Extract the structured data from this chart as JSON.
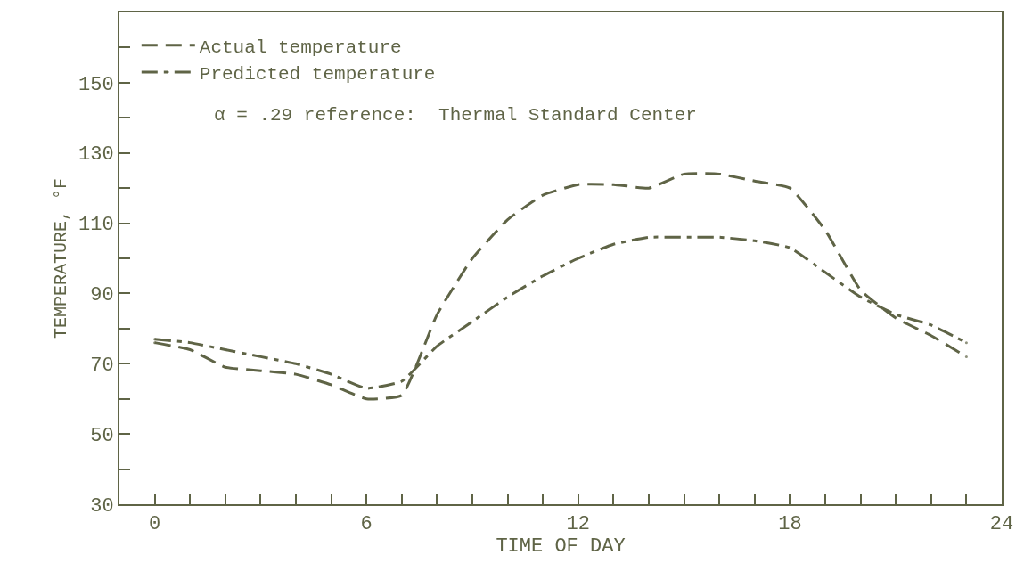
{
  "chart_data": {
    "type": "line",
    "xlabel": "TIME OF DAY",
    "ylabel": "TEMPERATURE, °F",
    "x": [
      0,
      1,
      2,
      3,
      4,
      5,
      6,
      7,
      8,
      9,
      10,
      11,
      12,
      13,
      14,
      15,
      16,
      17,
      18,
      19,
      20,
      21,
      22,
      23
    ],
    "series": [
      {
        "name": "Actual temperature",
        "color": "#5f6446",
        "line_style": "dashed",
        "values": [
          76,
          74,
          69,
          68,
          67,
          64,
          60,
          61,
          84,
          100,
          111,
          118,
          121,
          121,
          120,
          124,
          124,
          122,
          120,
          108,
          91,
          83,
          78,
          72
        ]
      },
      {
        "name": "Predicted temperature",
        "color": "#5f6446",
        "line_style": "dashdot",
        "values": [
          77,
          76,
          74,
          72,
          70,
          67,
          63,
          65,
          75,
          82,
          89,
          95,
          100,
          104,
          106,
          106,
          106,
          105,
          103,
          96,
          89,
          84,
          81,
          76
        ]
      }
    ],
    "annotations": [
      "α = .29 reference:  Thermal Standard Center"
    ],
    "xlim": [
      -1,
      24
    ],
    "xticks": [
      0,
      {
        "value": 1,
        "label": null
      },
      {
        "value": 2,
        "label": null
      },
      {
        "value": 3,
        "label": null
      },
      {
        "value": 4,
        "label": null
      },
      {
        "value": 5,
        "label": null
      },
      6,
      {
        "value": 7,
        "label": null
      },
      {
        "value": 8,
        "label": null
      },
      {
        "value": 9,
        "label": null
      },
      {
        "value": 10,
        "label": null
      },
      {
        "value": 11,
        "label": null
      },
      12,
      {
        "value": 13,
        "label": null
      },
      {
        "value": 14,
        "label": null
      },
      {
        "value": 15,
        "label": null
      },
      {
        "value": 16,
        "label": null
      },
      {
        "value": 17,
        "label": null
      },
      18,
      {
        "value": 19,
        "label": null
      },
      {
        "value": 20,
        "label": null
      },
      {
        "value": 21,
        "label": null
      },
      {
        "value": 22,
        "label": null
      },
      {
        "value": 23,
        "label": null
      },
      24
    ],
    "ylim": [
      30,
      170
    ],
    "yticks": [
      30,
      {
        "value": 40,
        "label": null
      },
      50,
      {
        "value": 60,
        "label": null
      },
      70,
      {
        "value": 80,
        "label": null
      },
      90,
      {
        "value": 100,
        "label": null
      },
      110,
      {
        "value": 120,
        "label": null
      },
      130,
      {
        "value": 140,
        "label": null
      },
      150,
      {
        "value": 160,
        "label": null
      }
    ],
    "legend": "top left",
    "grid": false,
    "marker": "none"
  }
}
